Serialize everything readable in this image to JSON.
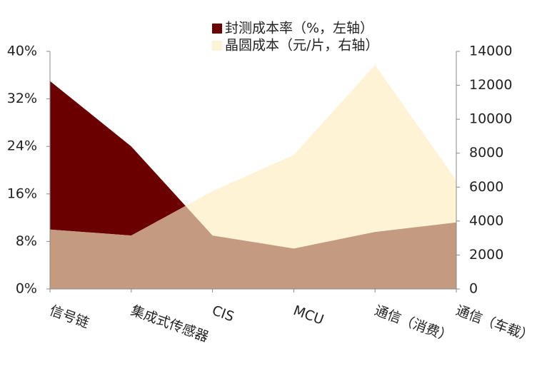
{
  "chart_data": {
    "type": "area",
    "categories": [
      "信号链",
      "集成式传感器",
      "CIS",
      "MCU",
      "通信（消费）",
      "通信（车载）"
    ],
    "series": [
      {
        "name": "封测成本率（%，左轴）",
        "color": "#6b0000",
        "values": [
          35,
          24,
          9,
          6.8,
          9.6,
          11.2
        ]
      },
      {
        "name": "晶圆成本（元/片，右轴）",
        "color": "#fff3d6",
        "axis": "y2",
        "values": [
          3500,
          3150,
          5760,
          7900,
          13200,
          6400
        ]
      }
    ],
    "ylim": [
      0,
      40
    ],
    "yticks": [
      {
        "value": 0,
        "label": "0%"
      },
      {
        "value": 8,
        "label": "8%"
      },
      {
        "value": 16,
        "label": "16%"
      },
      {
        "value": 24,
        "label": "24%"
      },
      {
        "value": 32,
        "label": "32%"
      },
      {
        "value": 40,
        "label": "40%"
      }
    ],
    "y2lim": [
      0,
      14000
    ],
    "y2ticks": [
      0,
      2000,
      4000,
      6000,
      8000,
      10000,
      12000,
      14000
    ]
  }
}
